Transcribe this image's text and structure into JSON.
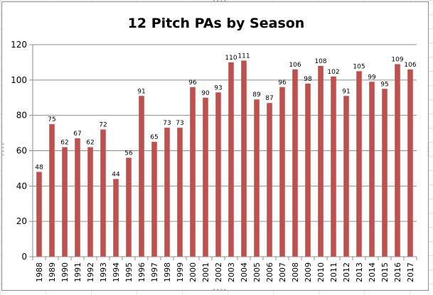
{
  "colors": {
    "bar": "#c0504d",
    "gridline": "#8c8c8c",
    "axis": "#8c8c8c",
    "frame_border": "#8e8e8e",
    "sheet_gridline": "#dfe3e8"
  },
  "chart_data": {
    "type": "bar",
    "title": "12 Pitch PAs by Season",
    "xlabel": "",
    "ylabel": "",
    "ylim": [
      0,
      120
    ],
    "yticks": [
      0,
      20,
      40,
      60,
      80,
      100,
      120
    ],
    "grid": true,
    "legend": "none",
    "data_labels": true,
    "categories": [
      "1988",
      "1989",
      "1990",
      "1991",
      "1992",
      "1993",
      "1994",
      "1995",
      "1996",
      "1997",
      "1998",
      "1999",
      "2000",
      "2001",
      "2002",
      "2003",
      "2004",
      "2005",
      "2006",
      "2007",
      "2008",
      "2009",
      "2010",
      "2011",
      "2012",
      "2013",
      "2014",
      "2015",
      "2016",
      "2017"
    ],
    "values": [
      48,
      75,
      62,
      67,
      62,
      72,
      44,
      56,
      91,
      65,
      73,
      73,
      96,
      90,
      93,
      110,
      111,
      89,
      87,
      96,
      106,
      98,
      108,
      102,
      91,
      105,
      99,
      95,
      109,
      106
    ]
  }
}
